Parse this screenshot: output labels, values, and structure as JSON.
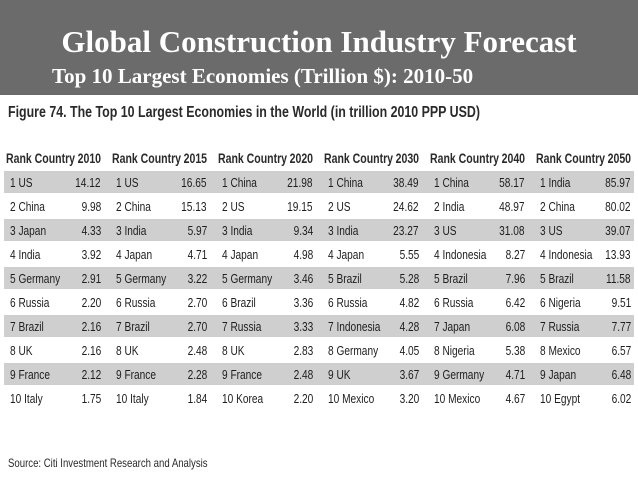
{
  "banner": {
    "title": "Global Construction Industry Forecast",
    "subtitle": "Top 10 Largest Economies (Trillion $): 2010-50"
  },
  "figure": {
    "caption": "Figure 74. The Top 10 Largest Economies in the World (in trillion 2010 PPP USD)"
  },
  "table": {
    "rank_header": "Rank Country",
    "years": [
      "2010",
      "2015",
      "2020",
      "2030",
      "2040",
      "2050"
    ],
    "rows": [
      [
        [
          "1 US",
          "14.12"
        ],
        [
          "1 US",
          "16.65"
        ],
        [
          "1 China",
          "21.98"
        ],
        [
          "1 China",
          "38.49"
        ],
        [
          "1 China",
          "58.17"
        ],
        [
          "1 India",
          "85.97"
        ]
      ],
      [
        [
          "2 China",
          "9.98"
        ],
        [
          "2 China",
          "15.13"
        ],
        [
          "2 US",
          "19.15"
        ],
        [
          "2 US",
          "24.62"
        ],
        [
          "2 India",
          "48.97"
        ],
        [
          "2 China",
          "80.02"
        ]
      ],
      [
        [
          "3 Japan",
          "4.33"
        ],
        [
          "3 India",
          "5.97"
        ],
        [
          "3 India",
          "9.34"
        ],
        [
          "3 India",
          "23.27"
        ],
        [
          "3 US",
          "31.08"
        ],
        [
          "3 US",
          "39.07"
        ]
      ],
      [
        [
          "4 India",
          "3.92"
        ],
        [
          "4 Japan",
          "4.71"
        ],
        [
          "4 Japan",
          "4.98"
        ],
        [
          "4 Japan",
          "5.55"
        ],
        [
          "4 Indonesia",
          "8.27"
        ],
        [
          "4 Indonesia",
          "13.93"
        ]
      ],
      [
        [
          "5 Germany",
          "2.91"
        ],
        [
          "5 Germany",
          "3.22"
        ],
        [
          "5 Germany",
          "3.46"
        ],
        [
          "5 Brazil",
          "5.28"
        ],
        [
          "5 Brazil",
          "7.96"
        ],
        [
          "5 Brazil",
          "11.58"
        ]
      ],
      [
        [
          "6 Russia",
          "2.20"
        ],
        [
          "6 Russia",
          "2.70"
        ],
        [
          "6 Brazil",
          "3.36"
        ],
        [
          "6 Russia",
          "4.82"
        ],
        [
          "6 Russia",
          "6.42"
        ],
        [
          "6 Nigeria",
          "9.51"
        ]
      ],
      [
        [
          "7 Brazil",
          "2.16"
        ],
        [
          "7 Brazil",
          "2.70"
        ],
        [
          "7 Russia",
          "3.33"
        ],
        [
          "7 Indonesia",
          "4.28"
        ],
        [
          "7 Japan",
          "6.08"
        ],
        [
          "7 Russia",
          "7.77"
        ]
      ],
      [
        [
          "8 UK",
          "2.16"
        ],
        [
          "8 UK",
          "2.48"
        ],
        [
          "8 UK",
          "2.83"
        ],
        [
          "8 Germany",
          "4.05"
        ],
        [
          "8 Nigeria",
          "5.38"
        ],
        [
          "8 Mexico",
          "6.57"
        ]
      ],
      [
        [
          "9 France",
          "2.12"
        ],
        [
          "9 France",
          "2.28"
        ],
        [
          "9 France",
          "2.48"
        ],
        [
          "9 UK",
          "3.67"
        ],
        [
          "9 Germany",
          "4.71"
        ],
        [
          "9 Japan",
          "6.48"
        ]
      ],
      [
        [
          "10 Italy",
          "1.75"
        ],
        [
          "10 Italy",
          "1.84"
        ],
        [
          "10 Korea",
          "2.20"
        ],
        [
          "10 Mexico",
          "3.20"
        ],
        [
          "10 Mexico",
          "4.67"
        ],
        [
          "10 Egypt",
          "6.02"
        ]
      ]
    ]
  },
  "source": "Source: Citi Investment Research and Analysis"
}
